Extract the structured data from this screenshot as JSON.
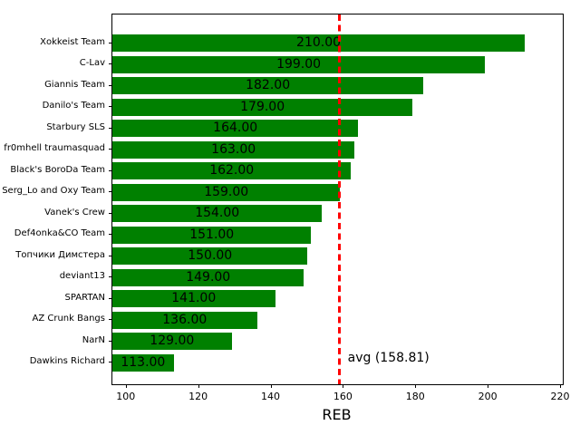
{
  "chart_data": {
    "type": "bar",
    "orientation": "horizontal",
    "title": "",
    "xlabel": "REB",
    "ylabel": "",
    "categories": [
      "Xokkeist Team",
      "C-Lav",
      "Giannis Team",
      "Danilo's Team",
      "Starbury SLS",
      "fr0mhell traumasquad",
      "Black's BoroDa Team",
      "Serg_Lo and Oxy Team",
      "Vanek's Crew",
      "Def4onka&CO Team",
      "Топчики Димстера",
      "deviant13",
      "SPARTAN",
      "AZ Crunk Bangs",
      "NarN",
      "Dawkins Richard"
    ],
    "values": [
      210,
      199,
      182,
      179,
      164,
      163,
      162,
      159,
      154,
      151,
      150,
      149,
      141,
      136,
      129,
      113
    ],
    "value_labels": [
      "210.00",
      "199.00",
      "182.00",
      "179.00",
      "164.00",
      "163.00",
      "162.00",
      "159.00",
      "154.00",
      "151.00",
      "150.00",
      "149.00",
      "141.00",
      "136.00",
      "129.00",
      "113.00"
    ],
    "xticks": [
      100,
      120,
      140,
      160,
      180,
      200,
      220
    ],
    "xlim": [
      96.05,
      220.5
    ],
    "grid": false,
    "legend": false,
    "bar_color": "#008000",
    "value_label_color": "#000000",
    "background_color": "#ffffff",
    "avg_line": {
      "value": 158.81,
      "label": "avg (158.81)",
      "color": "#ff0000",
      "style": "dashed"
    }
  }
}
